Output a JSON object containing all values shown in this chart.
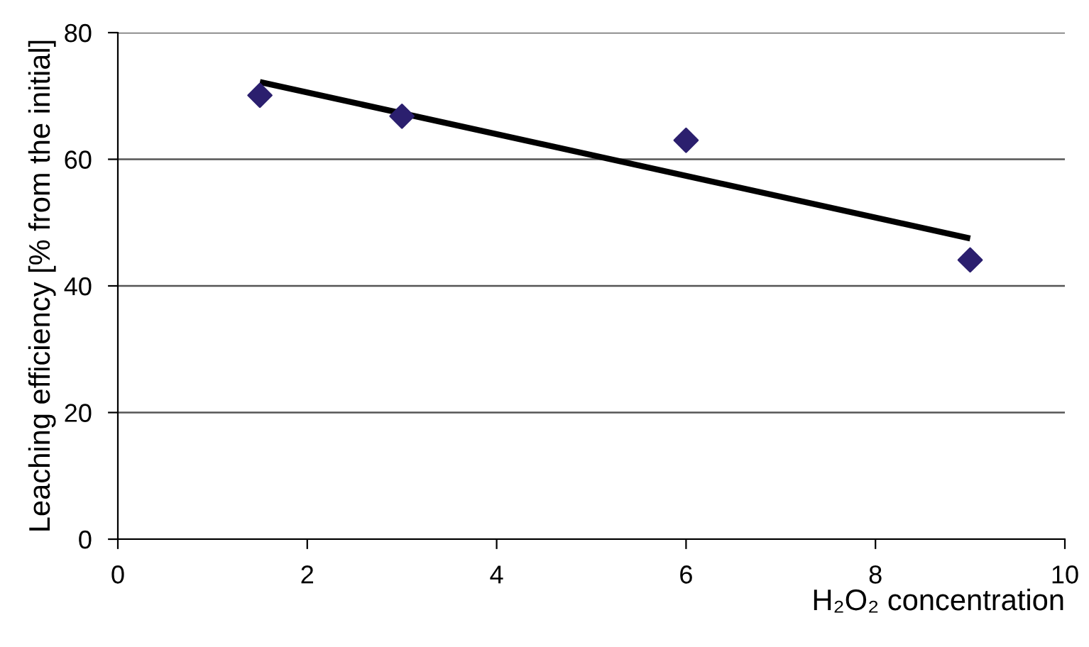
{
  "chart_data": {
    "type": "scatter",
    "xlabel": "H₂O₂ concentration",
    "ylabel": "Leaching efficiency [% from the initial]",
    "series": [
      {
        "color": "#2b1f6e",
        "marker": "diamond",
        "x": [
          1.5,
          3,
          6,
          9
        ],
        "values": [
          70.1,
          66.8,
          63.0,
          44.1
        ]
      },
      {
        "type": "line",
        "color": "#000000",
        "marker": "none",
        "line_style": "solid",
        "x": [
          1.5,
          9
        ],
        "values": [
          72.2,
          47.5
        ]
      }
    ],
    "xlim": [
      0,
      10
    ],
    "xticks": [
      0,
      2,
      4,
      6,
      8,
      10
    ],
    "ylim": [
      0,
      80
    ],
    "yticks": [
      0,
      20,
      40,
      60,
      80
    ],
    "grid": "y",
    "legend": false
  }
}
